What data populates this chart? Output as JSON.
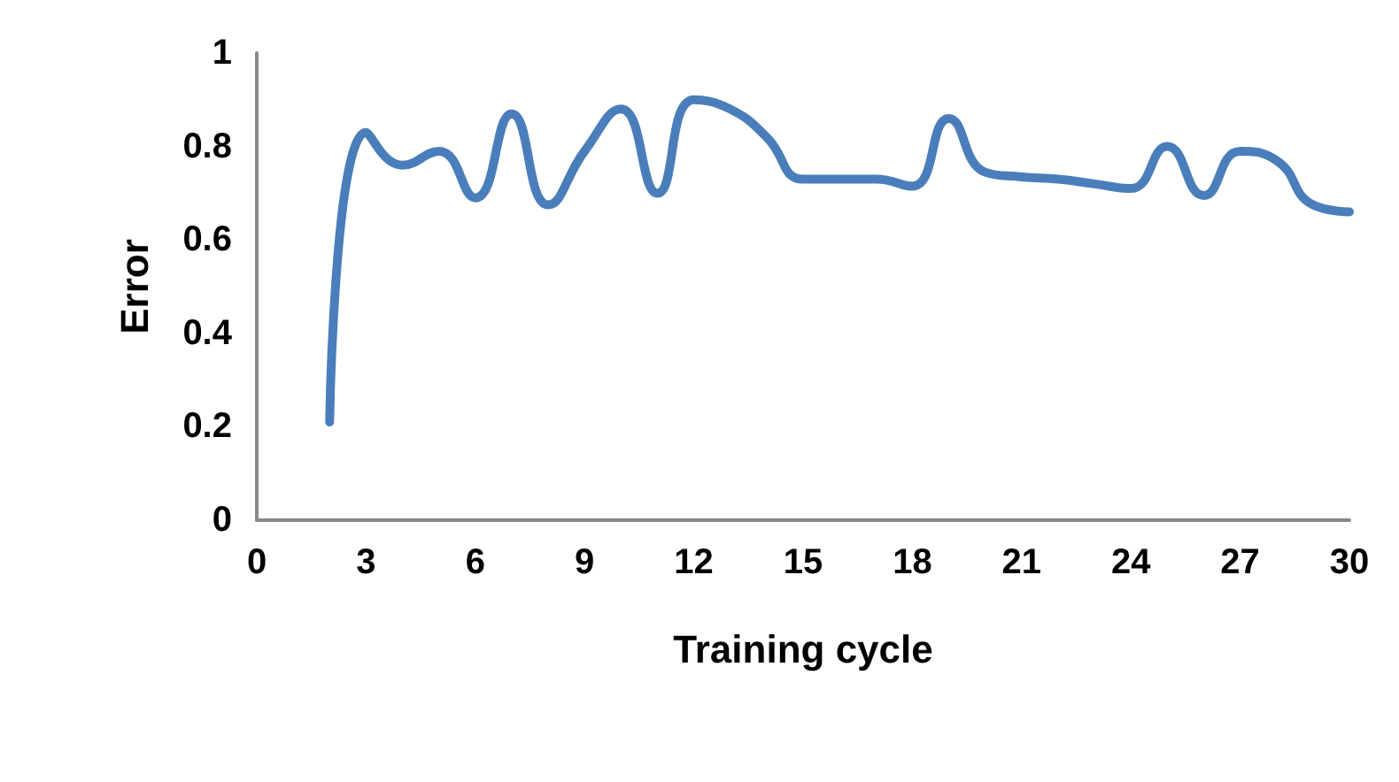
{
  "chart_data": {
    "type": "line",
    "xlabel": "Training cycle",
    "ylabel": "Error",
    "x": [
      2,
      3,
      4,
      5,
      6,
      7,
      8,
      9,
      10,
      11,
      12,
      13,
      14,
      15,
      16,
      17,
      18,
      19,
      20,
      21,
      22,
      23,
      24,
      25,
      26,
      27,
      28,
      29,
      30
    ],
    "series": [
      {
        "color": "#4a7ebb",
        "values": [
          0.21,
          0.83,
          0.76,
          0.79,
          0.69,
          0.87,
          0.675,
          0.79,
          0.88,
          0.7,
          0.9,
          0.88,
          0.82,
          0.73,
          0.73,
          0.73,
          0.715,
          0.86,
          0.745,
          0.735,
          0.73,
          0.72,
          0.71,
          0.8,
          0.695,
          0.79,
          0.77,
          0.675,
          0.66
        ]
      }
    ],
    "xlim": [
      0,
      30
    ],
    "xticks": [
      0,
      3,
      6,
      9,
      12,
      15,
      18,
      21,
      24,
      27,
      30
    ],
    "ylim": [
      0,
      1
    ],
    "yticks": [
      0,
      0.2,
      0.4,
      0.6,
      0.8,
      1
    ],
    "grid": false,
    "marker": "none",
    "line_style": "solid"
  }
}
